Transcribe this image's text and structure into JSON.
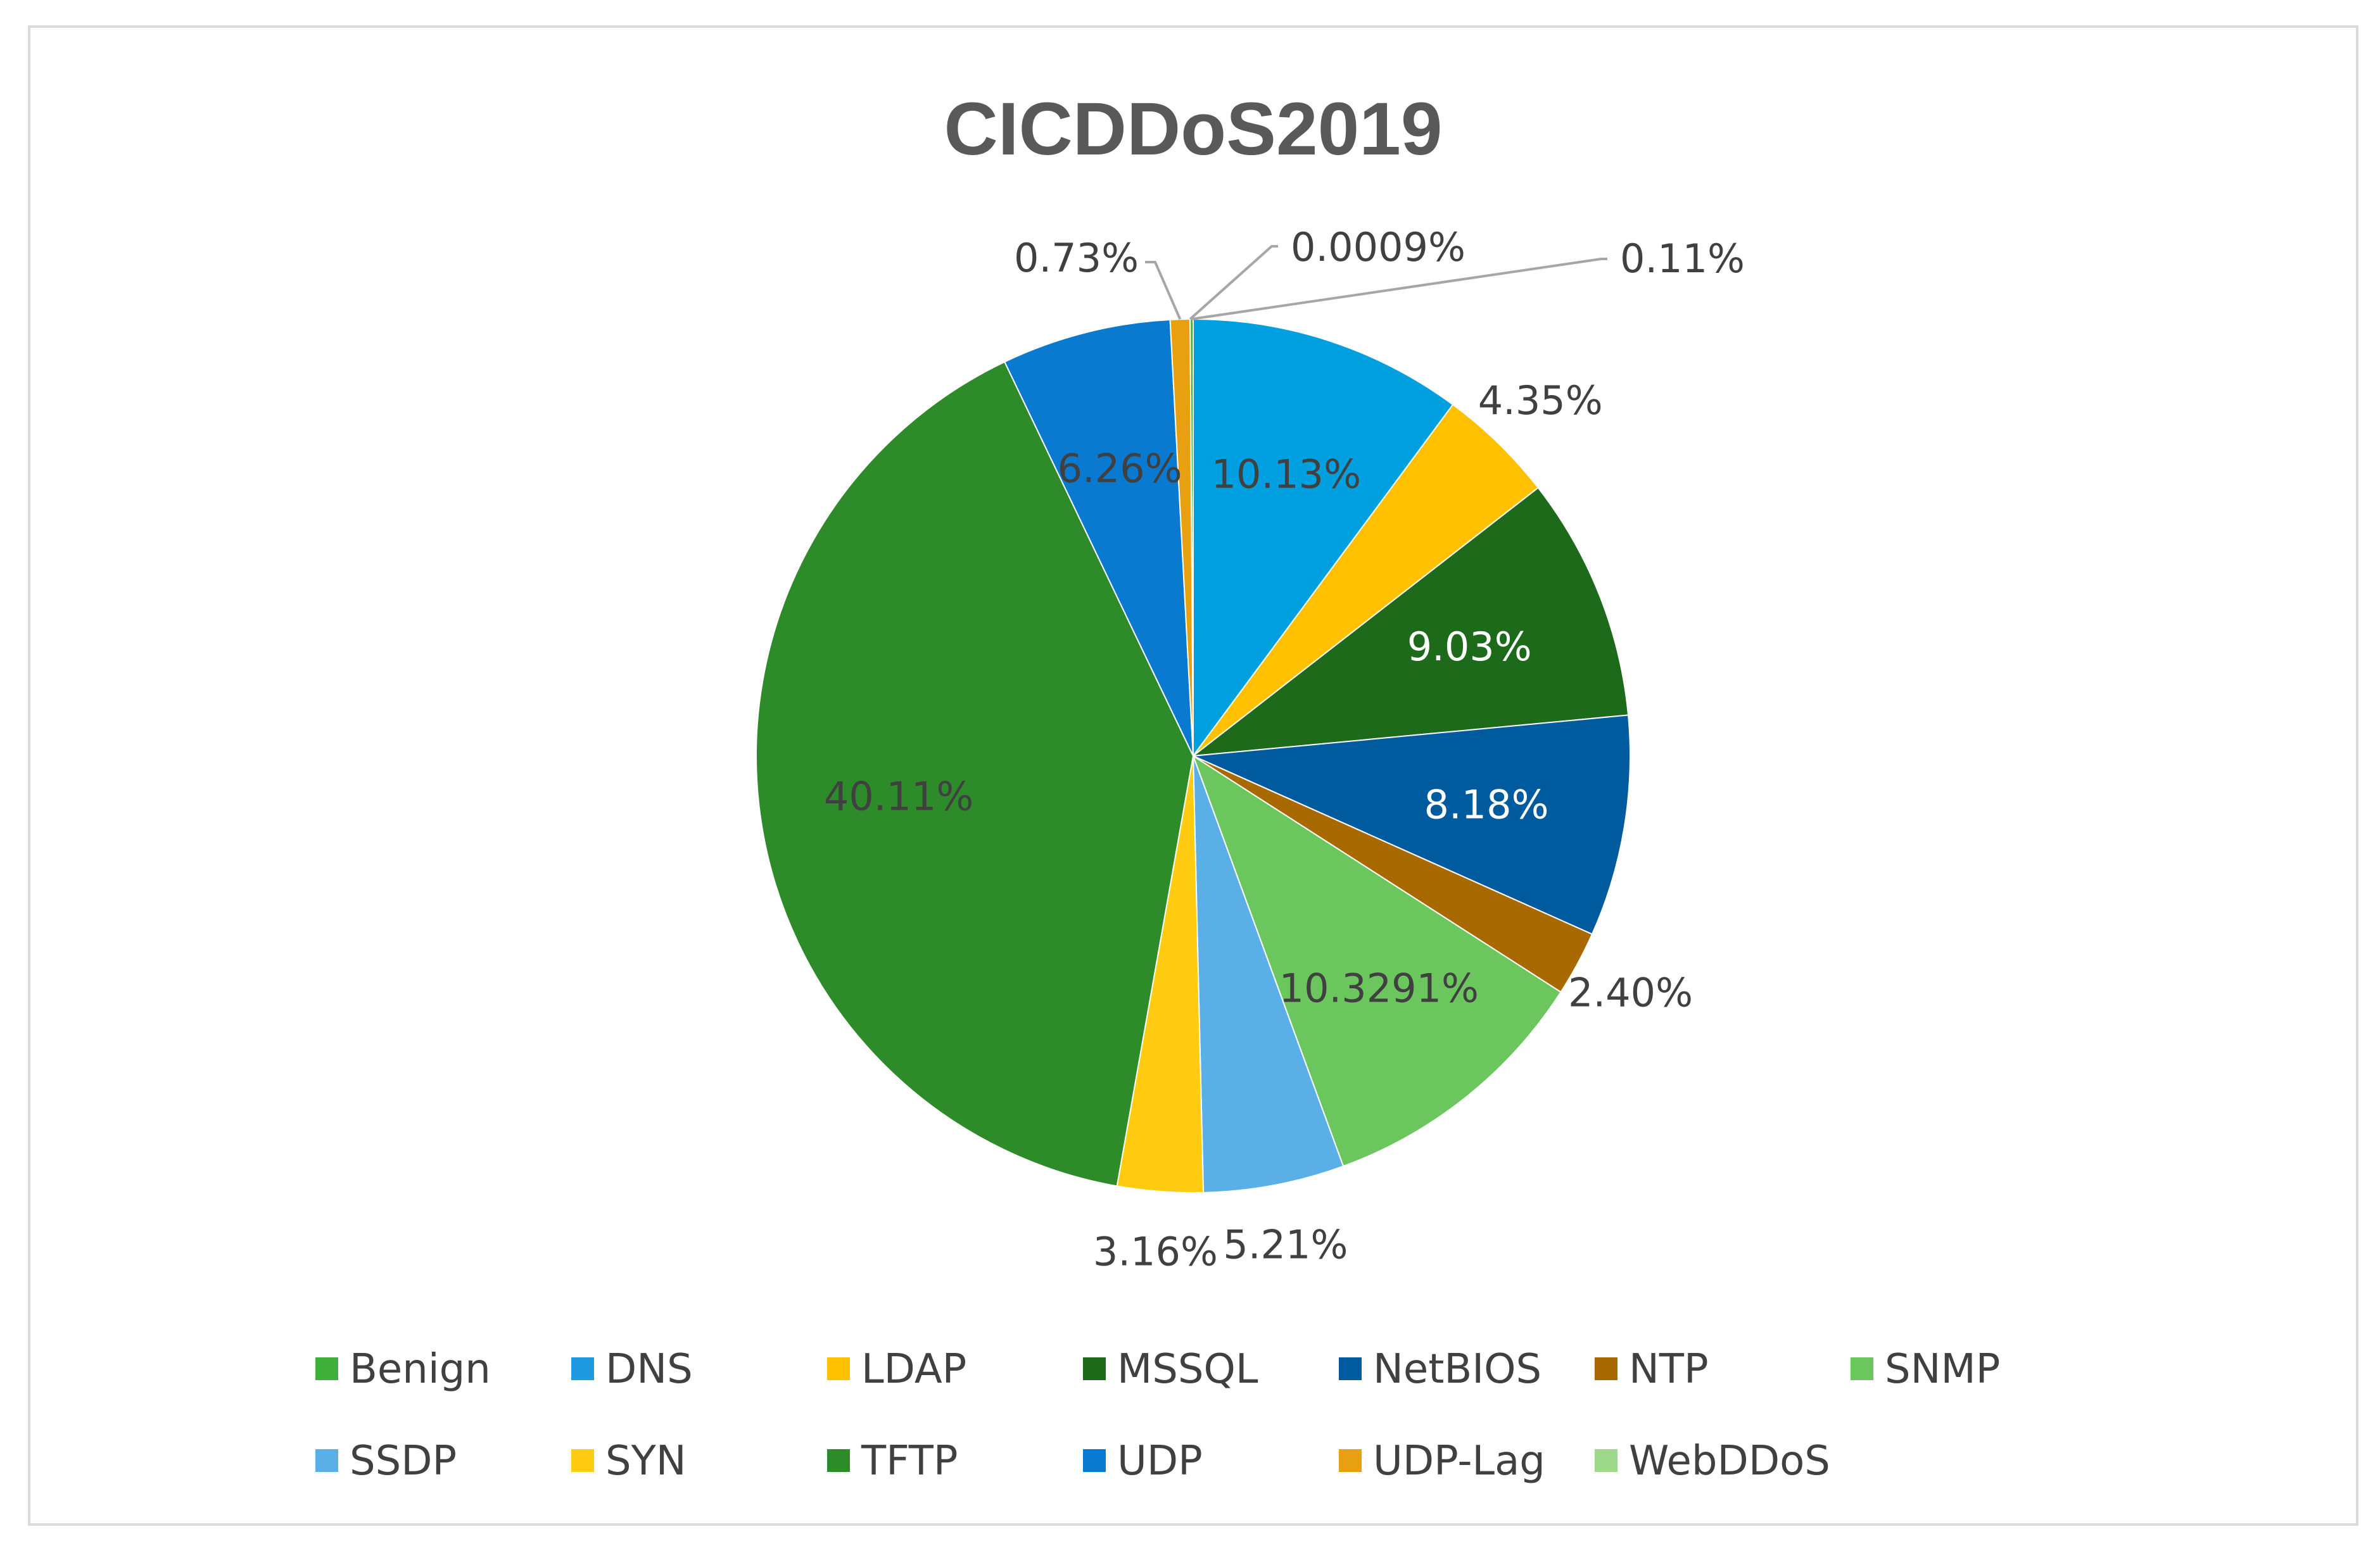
{
  "chart_data": {
    "type": "pie",
    "title": "CICDDoS2019",
    "start_angle": 0,
    "direction": "clockwise",
    "legend_position": "bottom",
    "slices": [
      {
        "name": "DNS",
        "value": 10.13,
        "label": "10.13%",
        "color": "#00a0e0",
        "label_color": "#404040",
        "label_mode": "inside"
      },
      {
        "name": "LDAP",
        "value": 4.35,
        "label": "4.35%",
        "color": "#ffc000",
        "label_color": "#404040",
        "label_mode": "outside"
      },
      {
        "name": "MSSQL",
        "value": 9.03,
        "label": "9.03%",
        "color": "#1d6b1a",
        "label_color": "#ffffff",
        "label_mode": "inside"
      },
      {
        "name": "NetBIOS",
        "value": 8.18,
        "label": "8.18%",
        "color": "#005a9e",
        "label_color": "#ffffff",
        "label_mode": "inside"
      },
      {
        "name": "NTP",
        "value": 2.4,
        "label": "2.40%",
        "color": "#a86a00",
        "label_color": "#404040",
        "label_mode": "outside"
      },
      {
        "name": "SNMP",
        "value": 10.3291,
        "label": "10.3291%",
        "color": "#6cc65e",
        "label_color": "#404040",
        "label_mode": "inside"
      },
      {
        "name": "SSDP",
        "value": 5.21,
        "label": "5.21%",
        "color": "#5aafe6",
        "label_color": "#404040",
        "label_mode": "outside"
      },
      {
        "name": "SYN",
        "value": 3.16,
        "label": "3.16%",
        "color": "#ffcc11",
        "label_color": "#404040",
        "label_mode": "outside"
      },
      {
        "name": "TFTP",
        "value": 40.11,
        "label": "40.11%",
        "color": "#2e8b2a",
        "label_color": "#404040",
        "label_mode": "inside"
      },
      {
        "name": "UDP",
        "value": 6.26,
        "label": "6.26%",
        "color": "#0a7ad0",
        "label_color": "#404040",
        "label_mode": "inside"
      },
      {
        "name": "UDP-Lag",
        "value": 0.73,
        "label": "0.73%",
        "color": "#e8a010",
        "label_color": "#404040",
        "label_mode": "leader"
      },
      {
        "name": "WebDDoS",
        "value": 0.0009,
        "label": "0.0009%",
        "color": "#9ed88a",
        "label_color": "#404040",
        "label_mode": "leader"
      },
      {
        "name": "Benign",
        "value": 0.11,
        "label": "0.11%",
        "color": "#3fae3a",
        "label_color": "#404040",
        "label_mode": "leader"
      }
    ],
    "legend": [
      {
        "name": "Benign",
        "color": "#3fae3a"
      },
      {
        "name": "DNS",
        "color": "#1e9be0"
      },
      {
        "name": "LDAP",
        "color": "#ffc000"
      },
      {
        "name": "MSSQL",
        "color": "#1d6b1a"
      },
      {
        "name": "NetBIOS",
        "color": "#005a9e"
      },
      {
        "name": "NTP",
        "color": "#a86a00"
      },
      {
        "name": "SNMP",
        "color": "#6cc65e"
      },
      {
        "name": "SSDP",
        "color": "#5aafe6"
      },
      {
        "name": "SYN",
        "color": "#ffcc11"
      },
      {
        "name": "TFTP",
        "color": "#2e8b2a"
      },
      {
        "name": "UDP",
        "color": "#0a7ad0"
      },
      {
        "name": "UDP-Lag",
        "color": "#e8a010"
      },
      {
        "name": "WebDDoS",
        "color": "#9ed88a"
      }
    ]
  }
}
